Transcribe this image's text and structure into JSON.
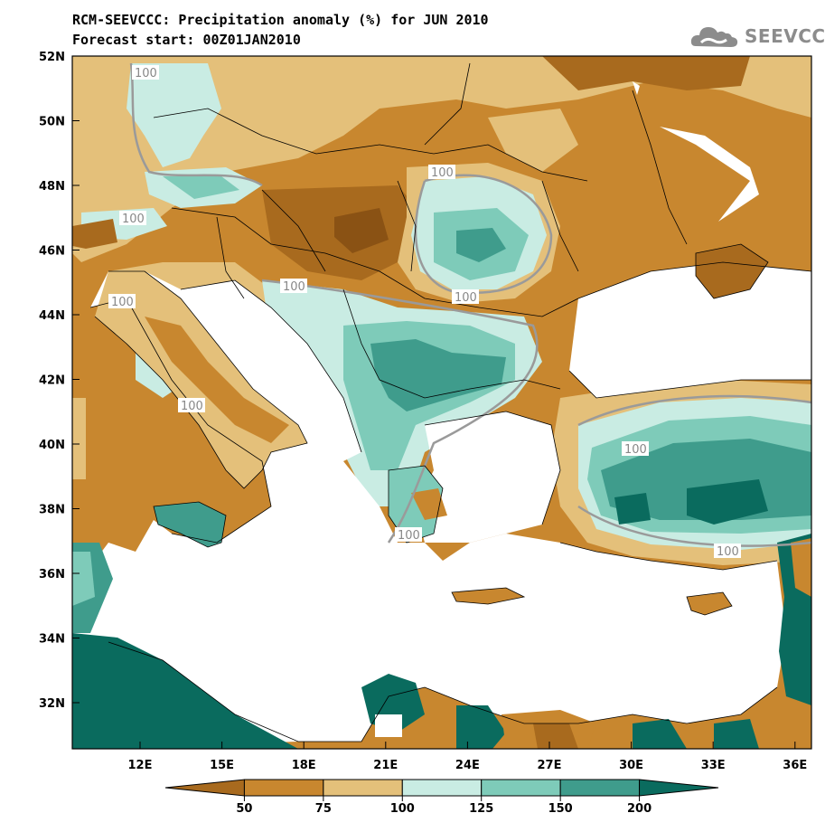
{
  "header": {
    "title": "RCM-SEEVCCC: Precipitation anomaly (%) for JUN 2010",
    "subtitle": "Forecast start: 00Z01JAN2010"
  },
  "logo": {
    "text": "SEEVCCC",
    "icon": "cloud-icon"
  },
  "map": {
    "lat_labels": [
      "52N",
      "50N",
      "48N",
      "46N",
      "44N",
      "42N",
      "40N",
      "38N",
      "36N",
      "34N",
      "32N"
    ],
    "lon_labels": [
      "12E",
      "15E",
      "18E",
      "21E",
      "24E",
      "27E",
      "30E",
      "33E",
      "36E"
    ],
    "lat_range": [
      30.6,
      52
    ],
    "lon_range": [
      10,
      37
    ],
    "contour_label": "100"
  },
  "legend": {
    "bounds": [
      "50",
      "75",
      "100",
      "125",
      "150",
      "200"
    ],
    "colors": [
      "#a86a1e",
      "#c8872f",
      "#e4c07a",
      "#c9ece3",
      "#7ecbb9",
      "#3f9c8c",
      "#0a6b5e"
    ]
  }
}
